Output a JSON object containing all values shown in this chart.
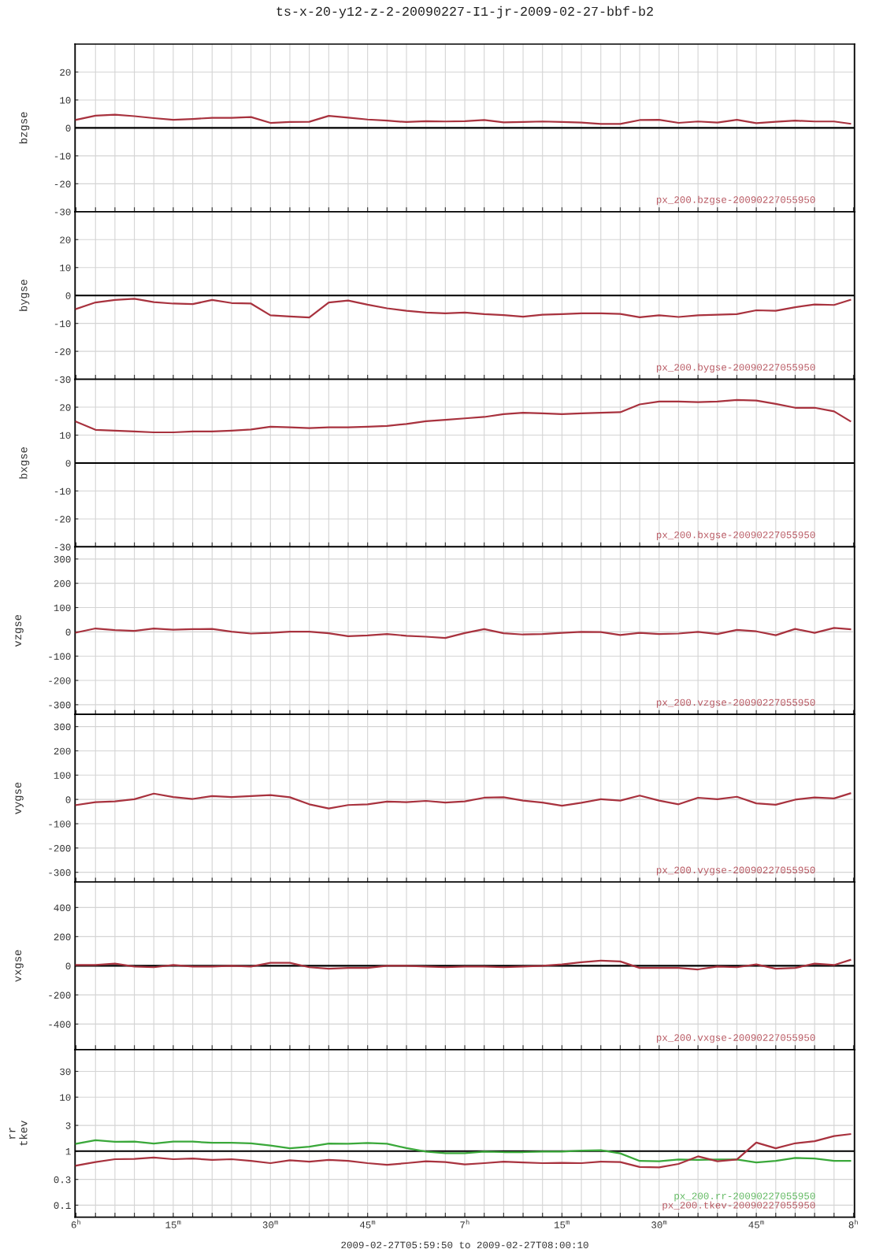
{
  "chart_data": [
    {
      "type": "line",
      "title": "ts-x-20-y12-z-2-20090227-I1-jr-2009-02-27-bbf-b2",
      "ylabel": "bzgse",
      "xlim": [
        "2009-02-27T05:59:50",
        "2009-02-27T08:00:10"
      ],
      "ylim": [
        -30,
        30
      ],
      "yticks": [
        -30,
        -20,
        -10,
        0,
        10,
        20
      ],
      "tick_labels": "y",
      "grid": true,
      "legend": "bottom right",
      "xticks": [
        "2009-02-27T06:00",
        "2009-02-27T06:03",
        "2009-02-27T06:06",
        "2009-02-27T06:09",
        "2009-02-27T06:12",
        "2009-02-27T06:15",
        "2009-02-27T06:18",
        "2009-02-27T06:21",
        "2009-02-27T06:24",
        "2009-02-27T06:27",
        "2009-02-27T06:30",
        "2009-02-27T06:33",
        "2009-02-27T06:36",
        "2009-02-27T06:39",
        "2009-02-27T06:42",
        "2009-02-27T06:45",
        "2009-02-27T06:48",
        "2009-02-27T06:51",
        "2009-02-27T06:54",
        "2009-02-27T06:57",
        "2009-02-27T07:00",
        "2009-02-27T07:03",
        "2009-02-27T07:06",
        "2009-02-27T07:09",
        "2009-02-27T07:12",
        "2009-02-27T07:15",
        "2009-02-27T07:18",
        "2009-02-27T07:21",
        "2009-02-27T07:24",
        "2009-02-27T07:27",
        "2009-02-27T07:30",
        "2009-02-27T07:33",
        "2009-02-27T07:36",
        "2009-02-27T07:39",
        "2009-02-27T07:42",
        "2009-02-27T07:45",
        "2009-02-27T07:48",
        "2009-02-27T07:51",
        "2009-02-27T07:54",
        "2009-02-27T07:57",
        "2009-02-27T08:00"
      ],
      "ref_lines": [
        {
          "axis": "y",
          "value": 0,
          "color": "#000000"
        }
      ],
      "x": [
        "2009-02-27T06:00",
        "2009-02-27T06:03",
        "2009-02-27T06:06",
        "2009-02-27T06:09",
        "2009-02-27T06:12",
        "2009-02-27T06:15",
        "2009-02-27T06:18",
        "2009-02-27T06:21",
        "2009-02-27T06:24",
        "2009-02-27T06:27",
        "2009-02-27T06:30",
        "2009-02-27T06:33",
        "2009-02-27T06:36",
        "2009-02-27T06:39",
        "2009-02-27T06:42",
        "2009-02-27T06:45",
        "2009-02-27T06:48",
        "2009-02-27T06:51",
        "2009-02-27T06:54",
        "2009-02-27T06:57",
        "2009-02-27T07:00",
        "2009-02-27T07:03",
        "2009-02-27T07:06",
        "2009-02-27T07:09",
        "2009-02-27T07:12",
        "2009-02-27T07:15",
        "2009-02-27T07:18",
        "2009-02-27T07:21",
        "2009-02-27T07:24",
        "2009-02-27T07:27",
        "2009-02-27T07:30",
        "2009-02-27T07:33",
        "2009-02-27T07:36",
        "2009-02-27T07:39",
        "2009-02-27T07:42",
        "2009-02-27T07:45",
        "2009-02-27T07:48",
        "2009-02-27T07:51",
        "2009-02-27T07:54",
        "2009-02-27T07:57",
        "2009-02-27T07:59:30"
      ],
      "series": [
        {
          "name": "px_200.bzgse-20090227055950",
          "color": "#a8323e",
          "values": [
            2.9,
            4.4,
            4.7,
            4.2,
            3.5,
            2.9,
            3.2,
            3.6,
            3.6,
            3.9,
            1.8,
            2.1,
            2.2,
            4.3,
            3.7,
            3.0,
            2.6,
            2.1,
            2.4,
            2.3,
            2.4,
            2.8,
            2.0,
            2.1,
            2.3,
            2.1,
            1.9,
            1.4,
            1.4,
            2.8,
            2.9,
            1.8,
            2.3,
            1.9,
            2.9,
            1.7,
            2.2,
            2.6,
            2.3,
            2.3,
            1.5
          ]
        }
      ]
    },
    {
      "type": "line",
      "ylabel": "bygse",
      "xlim": [
        "2009-02-27T05:59:50",
        "2009-02-27T08:00:10"
      ],
      "ylim": [
        -30,
        30
      ],
      "yticks": [
        -30,
        -20,
        -10,
        0,
        10,
        20
      ],
      "tick_labels": "y",
      "grid": true,
      "legend": "bottom right",
      "xticks": [
        "2009-02-27T06:00",
        "2009-02-27T06:03",
        "2009-02-27T06:06",
        "2009-02-27T06:09",
        "2009-02-27T06:12",
        "2009-02-27T06:15",
        "2009-02-27T06:18",
        "2009-02-27T06:21",
        "2009-02-27T06:24",
        "2009-02-27T06:27",
        "2009-02-27T06:30",
        "2009-02-27T06:33",
        "2009-02-27T06:36",
        "2009-02-27T06:39",
        "2009-02-27T06:42",
        "2009-02-27T06:45",
        "2009-02-27T06:48",
        "2009-02-27T06:51",
        "2009-02-27T06:54",
        "2009-02-27T06:57",
        "2009-02-27T07:00",
        "2009-02-27T07:03",
        "2009-02-27T07:06",
        "2009-02-27T07:09",
        "2009-02-27T07:12",
        "2009-02-27T07:15",
        "2009-02-27T07:18",
        "2009-02-27T07:21",
        "2009-02-27T07:24",
        "2009-02-27T07:27",
        "2009-02-27T07:30",
        "2009-02-27T07:33",
        "2009-02-27T07:36",
        "2009-02-27T07:39",
        "2009-02-27T07:42",
        "2009-02-27T07:45",
        "2009-02-27T07:48",
        "2009-02-27T07:51",
        "2009-02-27T07:54",
        "2009-02-27T07:57",
        "2009-02-27T08:00"
      ],
      "ref_lines": [
        {
          "axis": "y",
          "value": 0,
          "color": "#000000"
        }
      ],
      "x": [
        "2009-02-27T06:00",
        "2009-02-27T06:03",
        "2009-02-27T06:06",
        "2009-02-27T06:09",
        "2009-02-27T06:12",
        "2009-02-27T06:15",
        "2009-02-27T06:18",
        "2009-02-27T06:21",
        "2009-02-27T06:24",
        "2009-02-27T06:27",
        "2009-02-27T06:30",
        "2009-02-27T06:33",
        "2009-02-27T06:36",
        "2009-02-27T06:39",
        "2009-02-27T06:42",
        "2009-02-27T06:45",
        "2009-02-27T06:48",
        "2009-02-27T06:51",
        "2009-02-27T06:54",
        "2009-02-27T06:57",
        "2009-02-27T07:00",
        "2009-02-27T07:03",
        "2009-02-27T07:06",
        "2009-02-27T07:09",
        "2009-02-27T07:12",
        "2009-02-27T07:15",
        "2009-02-27T07:18",
        "2009-02-27T07:21",
        "2009-02-27T07:24",
        "2009-02-27T07:27",
        "2009-02-27T07:30",
        "2009-02-27T07:33",
        "2009-02-27T07:36",
        "2009-02-27T07:39",
        "2009-02-27T07:42",
        "2009-02-27T07:45",
        "2009-02-27T07:48",
        "2009-02-27T07:51",
        "2009-02-27T07:54",
        "2009-02-27T07:57",
        "2009-02-27T07:59:30"
      ],
      "series": [
        {
          "name": "px_200.bygse-20090227055950",
          "color": "#a8323e",
          "values": [
            -4.8,
            -2.5,
            -1.6,
            -1.2,
            -2.4,
            -2.9,
            -3.1,
            -1.6,
            -2.7,
            -2.9,
            -7.1,
            -7.5,
            -7.9,
            -2.5,
            -1.8,
            -3.3,
            -4.6,
            -5.5,
            -6.1,
            -6.4,
            -6.1,
            -6.7,
            -7.0,
            -7.6,
            -6.9,
            -6.7,
            -6.4,
            -6.4,
            -6.6,
            -7.8,
            -7.1,
            -7.7,
            -7.1,
            -6.9,
            -6.7,
            -5.3,
            -5.5,
            -4.2,
            -3.2,
            -3.4,
            -1.6
          ]
        }
      ]
    },
    {
      "type": "line",
      "ylabel": "bxgse",
      "xlim": [
        "2009-02-27T05:59:50",
        "2009-02-27T08:00:10"
      ],
      "ylim": [
        -30,
        30
      ],
      "yticks": [
        -30,
        -20,
        -10,
        0,
        10,
        20
      ],
      "tick_labels": "y",
      "grid": true,
      "legend": "bottom right",
      "xticks": [
        "2009-02-27T06:00",
        "2009-02-27T06:03",
        "2009-02-27T06:06",
        "2009-02-27T06:09",
        "2009-02-27T06:12",
        "2009-02-27T06:15",
        "2009-02-27T06:18",
        "2009-02-27T06:21",
        "2009-02-27T06:24",
        "2009-02-27T06:27",
        "2009-02-27T06:30",
        "2009-02-27T06:33",
        "2009-02-27T06:36",
        "2009-02-27T06:39",
        "2009-02-27T06:42",
        "2009-02-27T06:45",
        "2009-02-27T06:48",
        "2009-02-27T06:51",
        "2009-02-27T06:54",
        "2009-02-27T06:57",
        "2009-02-27T07:00",
        "2009-02-27T07:03",
        "2009-02-27T07:06",
        "2009-02-27T07:09",
        "2009-02-27T07:12",
        "2009-02-27T07:15",
        "2009-02-27T07:18",
        "2009-02-27T07:21",
        "2009-02-27T07:24",
        "2009-02-27T07:27",
        "2009-02-27T07:30",
        "2009-02-27T07:33",
        "2009-02-27T07:36",
        "2009-02-27T07:39",
        "2009-02-27T07:42",
        "2009-02-27T07:45",
        "2009-02-27T07:48",
        "2009-02-27T07:51",
        "2009-02-27T07:54",
        "2009-02-27T07:57",
        "2009-02-27T08:00"
      ],
      "ref_lines": [
        {
          "axis": "y",
          "value": 0,
          "color": "#000000"
        }
      ],
      "x": [
        "2009-02-27T06:00",
        "2009-02-27T06:03",
        "2009-02-27T06:06",
        "2009-02-27T06:09",
        "2009-02-27T06:12",
        "2009-02-27T06:15",
        "2009-02-27T06:18",
        "2009-02-27T06:21",
        "2009-02-27T06:24",
        "2009-02-27T06:27",
        "2009-02-27T06:30",
        "2009-02-27T06:33",
        "2009-02-27T06:36",
        "2009-02-27T06:39",
        "2009-02-27T06:42",
        "2009-02-27T06:45",
        "2009-02-27T06:48",
        "2009-02-27T06:51",
        "2009-02-27T06:54",
        "2009-02-27T06:57",
        "2009-02-27T07:00",
        "2009-02-27T07:03",
        "2009-02-27T07:06",
        "2009-02-27T07:09",
        "2009-02-27T07:12",
        "2009-02-27T07:15",
        "2009-02-27T07:18",
        "2009-02-27T07:21",
        "2009-02-27T07:24",
        "2009-02-27T07:27",
        "2009-02-27T07:30",
        "2009-02-27T07:33",
        "2009-02-27T07:36",
        "2009-02-27T07:39",
        "2009-02-27T07:42",
        "2009-02-27T07:45",
        "2009-02-27T07:48",
        "2009-02-27T07:51",
        "2009-02-27T07:54",
        "2009-02-27T07:57",
        "2009-02-27T07:59:30"
      ],
      "series": [
        {
          "name": "px_200.bxgse-20090227055950",
          "color": "#a8323e",
          "values": [
            14.8,
            11.9,
            11.6,
            11.3,
            11.0,
            11.0,
            11.3,
            11.3,
            11.6,
            12.0,
            13.0,
            12.8,
            12.5,
            12.8,
            12.8,
            13.0,
            13.3,
            14.0,
            15.0,
            15.5,
            16.0,
            16.5,
            17.5,
            18.0,
            17.8,
            17.5,
            17.8,
            18.0,
            18.2,
            21.0,
            22.0,
            22.0,
            21.8,
            22.0,
            22.6,
            22.4,
            21.2,
            19.8,
            19.8,
            18.5,
            15.0
          ]
        }
      ]
    },
    {
      "type": "line",
      "ylabel": "vzgse",
      "xlim": [
        "2009-02-27T05:59:50",
        "2009-02-27T08:00:10"
      ],
      "ylim": [
        -340,
        350
      ],
      "yticks": [
        -300,
        -200,
        -100,
        0,
        100,
        200,
        300
      ],
      "tick_labels": "y",
      "grid": true,
      "legend": "bottom right",
      "xticks": [
        "2009-02-27T06:00",
        "2009-02-27T06:03",
        "2009-02-27T06:06",
        "2009-02-27T06:09",
        "2009-02-27T06:12",
        "2009-02-27T06:15",
        "2009-02-27T06:18",
        "2009-02-27T06:21",
        "2009-02-27T06:24",
        "2009-02-27T06:27",
        "2009-02-27T06:30",
        "2009-02-27T06:33",
        "2009-02-27T06:36",
        "2009-02-27T06:39",
        "2009-02-27T06:42",
        "2009-02-27T06:45",
        "2009-02-27T06:48",
        "2009-02-27T06:51",
        "2009-02-27T06:54",
        "2009-02-27T06:57",
        "2009-02-27T07:00",
        "2009-02-27T07:03",
        "2009-02-27T07:06",
        "2009-02-27T07:09",
        "2009-02-27T07:12",
        "2009-02-27T07:15",
        "2009-02-27T07:18",
        "2009-02-27T07:21",
        "2009-02-27T07:24",
        "2009-02-27T07:27",
        "2009-02-27T07:30",
        "2009-02-27T07:33",
        "2009-02-27T07:36",
        "2009-02-27T07:39",
        "2009-02-27T07:42",
        "2009-02-27T07:45",
        "2009-02-27T07:48",
        "2009-02-27T07:51",
        "2009-02-27T07:54",
        "2009-02-27T07:57",
        "2009-02-27T08:00"
      ],
      "x": [
        "2009-02-27T06:00",
        "2009-02-27T06:03",
        "2009-02-27T06:06",
        "2009-02-27T06:09",
        "2009-02-27T06:12",
        "2009-02-27T06:15",
        "2009-02-27T06:18",
        "2009-02-27T06:21",
        "2009-02-27T06:24",
        "2009-02-27T06:27",
        "2009-02-27T06:30",
        "2009-02-27T06:33",
        "2009-02-27T06:36",
        "2009-02-27T06:39",
        "2009-02-27T06:42",
        "2009-02-27T06:45",
        "2009-02-27T06:48",
        "2009-02-27T06:51",
        "2009-02-27T06:54",
        "2009-02-27T06:57",
        "2009-02-27T07:00",
        "2009-02-27T07:03",
        "2009-02-27T07:06",
        "2009-02-27T07:09",
        "2009-02-27T07:12",
        "2009-02-27T07:15",
        "2009-02-27T07:18",
        "2009-02-27T07:21",
        "2009-02-27T07:24",
        "2009-02-27T07:27",
        "2009-02-27T07:30",
        "2009-02-27T07:33",
        "2009-02-27T07:36",
        "2009-02-27T07:39",
        "2009-02-27T07:42",
        "2009-02-27T07:45",
        "2009-02-27T07:48",
        "2009-02-27T07:51",
        "2009-02-27T07:54",
        "2009-02-27T07:57",
        "2009-02-27T07:59:30"
      ],
      "series": [
        {
          "name": "px_200.vzgse-20090227055950",
          "color": "#a8323e",
          "values": [
            -3,
            14,
            7,
            4,
            14,
            9,
            11,
            12,
            1,
            -7,
            -4,
            1,
            1,
            -6,
            -18,
            -15,
            -9,
            -16,
            -20,
            -25,
            -5,
            11,
            -6,
            -11,
            -9,
            -4,
            0,
            -1,
            -13,
            -4,
            -9,
            -7,
            0,
            -9,
            8,
            2,
            -14,
            12,
            -4,
            16,
            11
          ]
        }
      ]
    },
    {
      "type": "line",
      "ylabel": "vygse",
      "xlim": [
        "2009-02-27T05:59:50",
        "2009-02-27T08:00:10"
      ],
      "ylim": [
        -340,
        350
      ],
      "yticks": [
        -300,
        -200,
        -100,
        0,
        100,
        200,
        300
      ],
      "tick_labels": "y",
      "grid": true,
      "legend": "bottom right",
      "xticks": [
        "2009-02-27T06:00",
        "2009-02-27T06:03",
        "2009-02-27T06:06",
        "2009-02-27T06:09",
        "2009-02-27T06:12",
        "2009-02-27T06:15",
        "2009-02-27T06:18",
        "2009-02-27T06:21",
        "2009-02-27T06:24",
        "2009-02-27T06:27",
        "2009-02-27T06:30",
        "2009-02-27T06:33",
        "2009-02-27T06:36",
        "2009-02-27T06:39",
        "2009-02-27T06:42",
        "2009-02-27T06:45",
        "2009-02-27T06:48",
        "2009-02-27T06:51",
        "2009-02-27T06:54",
        "2009-02-27T06:57",
        "2009-02-27T07:00",
        "2009-02-27T07:03",
        "2009-02-27T07:06",
        "2009-02-27T07:09",
        "2009-02-27T07:12",
        "2009-02-27T07:15",
        "2009-02-27T07:18",
        "2009-02-27T07:21",
        "2009-02-27T07:24",
        "2009-02-27T07:27",
        "2009-02-27T07:30",
        "2009-02-27T07:33",
        "2009-02-27T07:36",
        "2009-02-27T07:39",
        "2009-02-27T07:42",
        "2009-02-27T07:45",
        "2009-02-27T07:48",
        "2009-02-27T07:51",
        "2009-02-27T07:54",
        "2009-02-27T07:57",
        "2009-02-27T08:00"
      ],
      "x": [
        "2009-02-27T06:00",
        "2009-02-27T06:03",
        "2009-02-27T06:06",
        "2009-02-27T06:09",
        "2009-02-27T06:12",
        "2009-02-27T06:15",
        "2009-02-27T06:18",
        "2009-02-27T06:21",
        "2009-02-27T06:24",
        "2009-02-27T06:27",
        "2009-02-27T06:30",
        "2009-02-27T06:33",
        "2009-02-27T06:36",
        "2009-02-27T06:39",
        "2009-02-27T06:42",
        "2009-02-27T06:45",
        "2009-02-27T06:48",
        "2009-02-27T06:51",
        "2009-02-27T06:54",
        "2009-02-27T06:57",
        "2009-02-27T07:00",
        "2009-02-27T07:03",
        "2009-02-27T07:06",
        "2009-02-27T07:09",
        "2009-02-27T07:12",
        "2009-02-27T07:15",
        "2009-02-27T07:18",
        "2009-02-27T07:21",
        "2009-02-27T07:24",
        "2009-02-27T07:27",
        "2009-02-27T07:30",
        "2009-02-27T07:33",
        "2009-02-27T07:36",
        "2009-02-27T07:39",
        "2009-02-27T07:42",
        "2009-02-27T07:45",
        "2009-02-27T07:48",
        "2009-02-27T07:51",
        "2009-02-27T07:54",
        "2009-02-27T07:57",
        "2009-02-27T07:59:30"
      ],
      "series": [
        {
          "name": "px_200.vygse-20090227055950",
          "color": "#a8323e",
          "values": [
            -23,
            -11,
            -8,
            1,
            24,
            10,
            2,
            14,
            10,
            14,
            18,
            9,
            -20,
            -37,
            -23,
            -20,
            -9,
            -11,
            -6,
            -13,
            -8,
            7,
            9,
            -5,
            -13,
            -26,
            -14,
            1,
            -5,
            16,
            -5,
            -20,
            7,
            1,
            11,
            -16,
            -22,
            -1,
            8,
            4,
            25
          ]
        }
      ]
    },
    {
      "type": "line",
      "ylabel": "vxgse",
      "xlim": [
        "2009-02-27T05:59:50",
        "2009-02-27T08:00:10"
      ],
      "ylim": [
        -575,
        575
      ],
      "yticks": [
        -400,
        -200,
        0,
        200,
        400
      ],
      "tick_labels": "y",
      "grid": true,
      "legend": "bottom right",
      "xticks": [
        "2009-02-27T06:00",
        "2009-02-27T06:03",
        "2009-02-27T06:06",
        "2009-02-27T06:09",
        "2009-02-27T06:12",
        "2009-02-27T06:15",
        "2009-02-27T06:18",
        "2009-02-27T06:21",
        "2009-02-27T06:24",
        "2009-02-27T06:27",
        "2009-02-27T06:30",
        "2009-02-27T06:33",
        "2009-02-27T06:36",
        "2009-02-27T06:39",
        "2009-02-27T06:42",
        "2009-02-27T06:45",
        "2009-02-27T06:48",
        "2009-02-27T06:51",
        "2009-02-27T06:54",
        "2009-02-27T06:57",
        "2009-02-27T07:00",
        "2009-02-27T07:03",
        "2009-02-27T07:06",
        "2009-02-27T07:09",
        "2009-02-27T07:12",
        "2009-02-27T07:15",
        "2009-02-27T07:18",
        "2009-02-27T07:21",
        "2009-02-27T07:24",
        "2009-02-27T07:27",
        "2009-02-27T07:30",
        "2009-02-27T07:33",
        "2009-02-27T07:36",
        "2009-02-27T07:39",
        "2009-02-27T07:42",
        "2009-02-27T07:45",
        "2009-02-27T07:48",
        "2009-02-27T07:51",
        "2009-02-27T07:54",
        "2009-02-27T07:57",
        "2009-02-27T08:00"
      ],
      "ref_lines": [
        {
          "axis": "y",
          "value": 0,
          "color": "#000000"
        }
      ],
      "x": [
        "2009-02-27T06:00",
        "2009-02-27T06:03",
        "2009-02-27T06:06",
        "2009-02-27T06:09",
        "2009-02-27T06:12",
        "2009-02-27T06:15",
        "2009-02-27T06:18",
        "2009-02-27T06:21",
        "2009-02-27T06:24",
        "2009-02-27T06:27",
        "2009-02-27T06:30",
        "2009-02-27T06:33",
        "2009-02-27T06:36",
        "2009-02-27T06:39",
        "2009-02-27T06:42",
        "2009-02-27T06:45",
        "2009-02-27T06:48",
        "2009-02-27T06:51",
        "2009-02-27T06:54",
        "2009-02-27T06:57",
        "2009-02-27T07:00",
        "2009-02-27T07:03",
        "2009-02-27T07:06",
        "2009-02-27T07:09",
        "2009-02-27T07:12",
        "2009-02-27T07:15",
        "2009-02-27T07:18",
        "2009-02-27T07:21",
        "2009-02-27T07:24",
        "2009-02-27T07:27",
        "2009-02-27T07:30",
        "2009-02-27T07:33",
        "2009-02-27T07:36",
        "2009-02-27T07:39",
        "2009-02-27T07:42",
        "2009-02-27T07:45",
        "2009-02-27T07:48",
        "2009-02-27T07:51",
        "2009-02-27T07:54",
        "2009-02-27T07:57",
        "2009-02-27T07:59:30"
      ],
      "series": [
        {
          "name": "px_200.vxgse-20090227055950",
          "color": "#a8323e",
          "values": [
            5,
            5,
            15,
            -5,
            -10,
            5,
            -5,
            -5,
            0,
            -5,
            20,
            20,
            -10,
            -20,
            -15,
            -15,
            0,
            0,
            -5,
            -10,
            -5,
            -5,
            -10,
            -5,
            0,
            10,
            25,
            35,
            30,
            -15,
            -15,
            -15,
            -25,
            -5,
            -10,
            10,
            -20,
            -15,
            15,
            5,
            40
          ]
        }
      ]
    },
    {
      "type": "line",
      "ylabel": "rr\ntkev",
      "xlabel": "2009-02-27T05:59:50 to 2009-02-27T08:00:10",
      "log": true,
      "xlim": [
        "2009-02-27T05:59:50",
        "2009-02-27T08:00:10"
      ],
      "ylim": [
        0.06,
        76
      ],
      "yticks": [
        0.1,
        0.3,
        1,
        3,
        10,
        30
      ],
      "grid": true,
      "legend": "bottom right",
      "xticks": [
        {
          "value": "2009-02-27T06:00",
          "label": "6$^{h}$"
        },
        {
          "value": "2009-02-27T06:03",
          "label": null
        },
        {
          "value": "2009-02-27T06:06",
          "label": null
        },
        {
          "value": "2009-02-27T06:09",
          "label": null
        },
        {
          "value": "2009-02-27T06:12",
          "label": null
        },
        {
          "value": "2009-02-27T06:15",
          "label": "15$^{m}$"
        },
        {
          "value": "2009-02-27T06:18",
          "label": null
        },
        {
          "value": "2009-02-27T06:21",
          "label": null
        },
        {
          "value": "2009-02-27T06:24",
          "label": null
        },
        {
          "value": "2009-02-27T06:27",
          "label": null
        },
        {
          "value": "2009-02-27T06:30",
          "label": "30$^{m}$"
        },
        {
          "value": "2009-02-27T06:33",
          "label": null
        },
        {
          "value": "2009-02-27T06:36",
          "label": null
        },
        {
          "value": "2009-02-27T06:39",
          "label": null
        },
        {
          "value": "2009-02-27T06:42",
          "label": null
        },
        {
          "value": "2009-02-27T06:45",
          "label": "45$^{m}$"
        },
        {
          "value": "2009-02-27T06:48",
          "label": null
        },
        {
          "value": "2009-02-27T06:51",
          "label": null
        },
        {
          "value": "2009-02-27T06:54",
          "label": null
        },
        {
          "value": "2009-02-27T06:57",
          "label": null
        },
        {
          "value": "2009-02-27T07:00",
          "label": "7$^{h}$"
        },
        {
          "value": "2009-02-27T07:03",
          "label": null
        },
        {
          "value": "2009-02-27T07:06",
          "label": null
        },
        {
          "value": "2009-02-27T07:09",
          "label": null
        },
        {
          "value": "2009-02-27T07:12",
          "label": null
        },
        {
          "value": "2009-02-27T07:15",
          "label": "15$^{m}$"
        },
        {
          "value": "2009-02-27T07:18",
          "label": null
        },
        {
          "value": "2009-02-27T07:21",
          "label": null
        },
        {
          "value": "2009-02-27T07:24",
          "label": null
        },
        {
          "value": "2009-02-27T07:27",
          "label": null
        },
        {
          "value": "2009-02-27T07:30",
          "label": "30$^{m}$"
        },
        {
          "value": "2009-02-27T07:33",
          "label": null
        },
        {
          "value": "2009-02-27T07:36",
          "label": null
        },
        {
          "value": "2009-02-27T07:39",
          "label": null
        },
        {
          "value": "2009-02-27T07:42",
          "label": null
        },
        {
          "value": "2009-02-27T07:45",
          "label": "45$^{m}$"
        },
        {
          "value": "2009-02-27T07:48",
          "label": null
        },
        {
          "value": "2009-02-27T07:51",
          "label": null
        },
        {
          "value": "2009-02-27T07:54",
          "label": null
        },
        {
          "value": "2009-02-27T07:57",
          "label": null
        },
        {
          "value": "2009-02-27T08:00",
          "label": "8$^{h}$"
        }
      ],
      "ref_lines": [
        {
          "axis": "y",
          "value": 1,
          "color": "#000000"
        }
      ],
      "x": [
        "2009-02-27T06:00",
        "2009-02-27T06:03",
        "2009-02-27T06:06",
        "2009-02-27T06:09",
        "2009-02-27T06:12",
        "2009-02-27T06:15",
        "2009-02-27T06:18",
        "2009-02-27T06:21",
        "2009-02-27T06:24",
        "2009-02-27T06:27",
        "2009-02-27T06:30",
        "2009-02-27T06:33",
        "2009-02-27T06:36",
        "2009-02-27T06:39",
        "2009-02-27T06:42",
        "2009-02-27T06:45",
        "2009-02-27T06:48",
        "2009-02-27T06:51",
        "2009-02-27T06:54",
        "2009-02-27T06:57",
        "2009-02-27T07:00",
        "2009-02-27T07:03",
        "2009-02-27T07:06",
        "2009-02-27T07:09",
        "2009-02-27T07:12",
        "2009-02-27T07:15",
        "2009-02-27T07:18",
        "2009-02-27T07:21",
        "2009-02-27T07:24",
        "2009-02-27T07:27",
        "2009-02-27T07:30",
        "2009-02-27T07:33",
        "2009-02-27T07:36",
        "2009-02-27T07:39",
        "2009-02-27T07:42",
        "2009-02-27T07:45",
        "2009-02-27T07:48",
        "2009-02-27T07:51",
        "2009-02-27T07:54",
        "2009-02-27T07:57",
        "2009-02-27T07:59:30"
      ],
      "series": [
        {
          "name": "px_200.rr-20090227055950",
          "color": "#3aa83a",
          "values": [
            1.37,
            1.6,
            1.49,
            1.5,
            1.38,
            1.5,
            1.5,
            1.43,
            1.43,
            1.4,
            1.27,
            1.13,
            1.21,
            1.38,
            1.37,
            1.42,
            1.37,
            1.14,
            0.98,
            0.92,
            0.92,
            0.98,
            0.96,
            0.96,
            0.98,
            0.98,
            1.02,
            1.04,
            0.91,
            0.66,
            0.65,
            0.7,
            0.69,
            0.7,
            0.7,
            0.62,
            0.66,
            0.75,
            0.73,
            0.66,
            0.66
          ]
        },
        {
          "name": "px_200.tkev-20090227055950",
          "color": "#a8323e",
          "values": [
            0.54,
            0.63,
            0.71,
            0.72,
            0.76,
            0.71,
            0.73,
            0.69,
            0.71,
            0.66,
            0.6,
            0.68,
            0.64,
            0.69,
            0.66,
            0.6,
            0.56,
            0.6,
            0.65,
            0.63,
            0.57,
            0.6,
            0.64,
            0.62,
            0.6,
            0.61,
            0.6,
            0.64,
            0.63,
            0.51,
            0.5,
            0.58,
            0.8,
            0.65,
            0.7,
            1.44,
            1.13,
            1.4,
            1.53,
            1.9,
            2.07
          ]
        }
      ]
    }
  ]
}
